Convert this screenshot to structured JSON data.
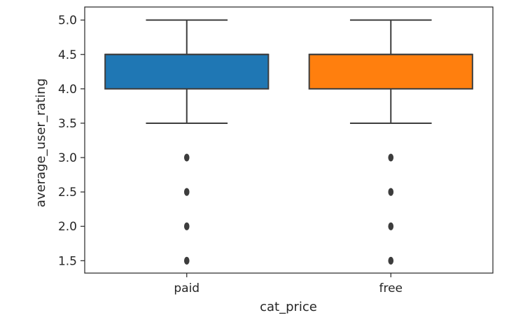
{
  "chart_data": {
    "type": "box",
    "xlabel": "cat_price",
    "ylabel": "average_user_rating",
    "ylim": [
      1.32,
      5.19
    ],
    "yticks": [
      "1.5",
      "2.0",
      "2.5",
      "3.0",
      "3.5",
      "4.0",
      "4.5",
      "5.0"
    ],
    "categories": [
      "paid",
      "free"
    ],
    "boxes": [
      {
        "category": "paid",
        "color": "#1f77b4",
        "whisker_low": 3.5,
        "q1": 4.0,
        "median": 4.5,
        "q3": 4.5,
        "whisker_high": 5.0,
        "outliers": [
          1.5,
          2.0,
          2.5,
          3.0
        ]
      },
      {
        "category": "free",
        "color": "#ff7f0e",
        "whisker_low": 3.5,
        "q1": 4.0,
        "median": 4.5,
        "q3": 4.5,
        "whisker_high": 5.0,
        "outliers": [
          1.5,
          2.0,
          2.5,
          3.0
        ]
      }
    ],
    "grid": false,
    "legend": "none"
  }
}
